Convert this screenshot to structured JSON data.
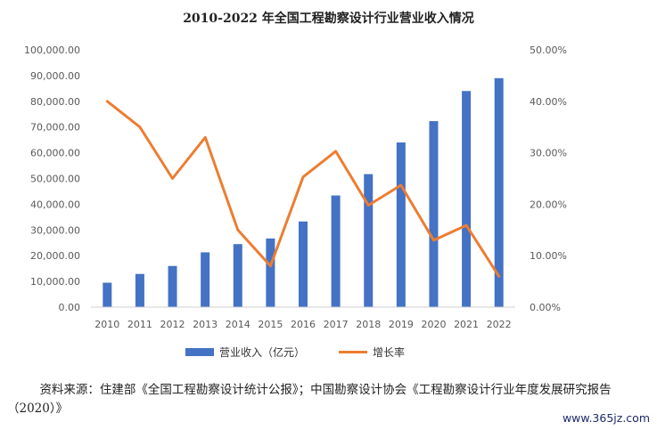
{
  "chart_data": {
    "type": "bar",
    "title": "2010-2022 年全国工程勘察设计行业营业收入情况",
    "categories": [
      "2010",
      "2011",
      "2012",
      "2013",
      "2014",
      "2015",
      "2016",
      "2017",
      "2018",
      "2019",
      "2020",
      "2021",
      "2022"
    ],
    "series": [
      {
        "name": "营业收入（亿元）",
        "type": "bar",
        "axis": "left",
        "color": "#4472C4",
        "values": [
          9500,
          12900,
          16000,
          21300,
          24500,
          26700,
          33300,
          43400,
          51700,
          64000,
          72300,
          84000,
          89000
        ]
      },
      {
        "name": "增长率",
        "type": "line",
        "axis": "right",
        "color": "#ED7D31",
        "values": [
          0.4,
          0.35,
          0.25,
          0.33,
          0.15,
          0.08,
          0.253,
          0.303,
          0.198,
          0.237,
          0.13,
          0.159,
          0.06
        ]
      }
    ],
    "y_left": {
      "lim": [
        0,
        100000
      ],
      "ticks": [
        "0.00",
        "10,000.00",
        "20,000.00",
        "30,000.00",
        "40,000.00",
        "50,000.00",
        "60,000.00",
        "70,000.00",
        "80,000.00",
        "90,000.00",
        "100,000.00"
      ]
    },
    "y_right": {
      "lim": [
        0,
        0.5
      ],
      "ticks": [
        "0.00%",
        "10.00%",
        "20.00%",
        "30.00%",
        "40.00%",
        "50.00%"
      ]
    },
    "grid": false,
    "legend": "bottom"
  },
  "source_note": "资料来源：住建部《全国工程勘察设计统计公报》；中国勘察设计协会《工程勘察设计行业年度发展研究报告（2020）》",
  "watermark": "www.365jz.com"
}
